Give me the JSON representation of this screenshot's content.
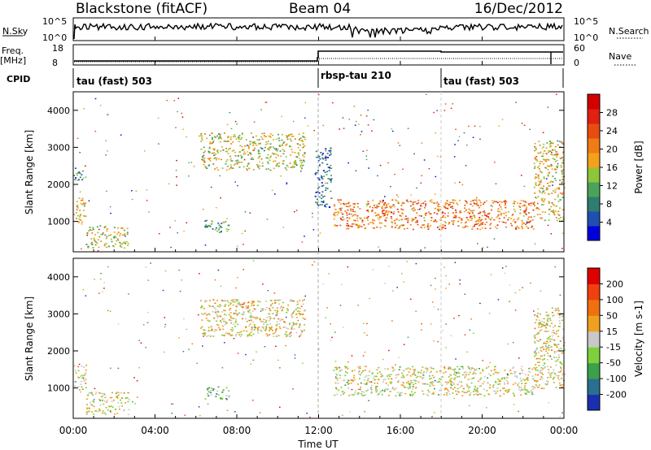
{
  "header": {
    "title": "Blackstone (fitACF)",
    "beam": "Beam 04",
    "date": "16/Dec/2012"
  },
  "summary": {
    "nsky_label": "N.Sky",
    "nsearch_label": "N.Search",
    "nsearch_ticks": [
      "10^5",
      "10^0"
    ],
    "nsky_ticks": [
      "10^5",
      "10^0"
    ],
    "freq_label": "Freq.",
    "freq_unit": "[MHz]",
    "freq_ticks": [
      "18",
      "8"
    ],
    "nave_label": "Nave",
    "nave_ticks": [
      "60",
      "0"
    ],
    "cpid_label": "CPID",
    "cpid_segments": [
      {
        "label": "tau (fast) 503",
        "start_hour": 0
      },
      {
        "label": "rbsp-tau 210",
        "start_hour": 12
      },
      {
        "label": "tau (fast) 503",
        "start_hour": 18
      }
    ]
  },
  "power_colorbar": {
    "label": "Power [dB]",
    "ticks": [
      "28",
      "24",
      "20",
      "16",
      "12",
      "8",
      "4"
    ],
    "colors": [
      "#0000dd",
      "#1f4fb0",
      "#2f7d6e",
      "#4aa35a",
      "#8fc53a",
      "#f2a21a",
      "#f07a14",
      "#e84d10",
      "#e02010",
      "#d40000"
    ]
  },
  "velocity_colorbar": {
    "label": "Velocity [m s-1]",
    "ticks": [
      "200",
      "100",
      "50",
      "15",
      "-15",
      "-50",
      "-100",
      "-200"
    ],
    "colors": [
      "#1a2fb0",
      "#2a6f8f",
      "#3aa04a",
      "#7ed13a",
      "#c8c8c8",
      "#f0a020",
      "#f07010",
      "#f04010",
      "#e00000"
    ]
  },
  "axes": {
    "ylabel": "Slant Range [km]",
    "xlabel": "Time UT",
    "yticks": [
      "4000",
      "3000",
      "2000",
      "1000"
    ],
    "xticks": [
      "00:00",
      "04:00",
      "08:00",
      "12:00",
      "16:00",
      "20:00",
      "00:00"
    ]
  },
  "chart_data": [
    {
      "type": "heatmap",
      "title": "",
      "xlabel": "",
      "ylabel": "Slant Range [km]",
      "x_hours": [
        0,
        24
      ],
      "ylim": [
        180,
        4500
      ],
      "colorbar": "Power [dB]",
      "clim": [
        0,
        30
      ],
      "regions": [
        {
          "t0": 0.0,
          "t1": 0.6,
          "r0": 950,
          "r1": 1650,
          "value": 16
        },
        {
          "t0": 0.0,
          "t1": 0.6,
          "r0": 2100,
          "r1": 2500,
          "value": 8
        },
        {
          "t0": 0.6,
          "t1": 2.7,
          "r0": 300,
          "r1": 900,
          "value": 14
        },
        {
          "t0": 6.4,
          "t1": 7.6,
          "r0": 700,
          "r1": 1050,
          "value": 10
        },
        {
          "t0": 6.2,
          "t1": 11.3,
          "r0": 2400,
          "r1": 3400,
          "value": 14
        },
        {
          "t0": 11.8,
          "t1": 12.6,
          "r0": 1400,
          "r1": 3000,
          "value": 6
        },
        {
          "t0": 12.7,
          "t1": 22.5,
          "r0": 800,
          "r1": 1600,
          "value": 20
        },
        {
          "t0": 22.5,
          "t1": 24.0,
          "r0": 1000,
          "r1": 3200,
          "value": 16
        }
      ]
    },
    {
      "type": "heatmap",
      "title": "",
      "xlabel": "Time UT",
      "ylabel": "Slant Range [km]",
      "x_hours": [
        0,
        24
      ],
      "ylim": [
        180,
        4500
      ],
      "colorbar": "Velocity [m s-1]",
      "clim": [
        -200,
        200
      ],
      "regions": [
        {
          "t0": 0.0,
          "t1": 0.6,
          "r0": 950,
          "r1": 1650,
          "value": 0
        },
        {
          "t0": 0.6,
          "t1": 2.7,
          "r0": 300,
          "r1": 900,
          "value": 0
        },
        {
          "t0": 6.4,
          "t1": 7.6,
          "r0": 700,
          "r1": 1050,
          "value": -60
        },
        {
          "t0": 6.2,
          "t1": 11.3,
          "r0": 2400,
          "r1": 3400,
          "value": 10
        },
        {
          "t0": 12.7,
          "t1": 22.5,
          "r0": 800,
          "r1": 1600,
          "value": 0
        },
        {
          "t0": 22.5,
          "t1": 24.0,
          "r0": 1000,
          "r1": 3200,
          "value": 5
        }
      ]
    }
  ]
}
